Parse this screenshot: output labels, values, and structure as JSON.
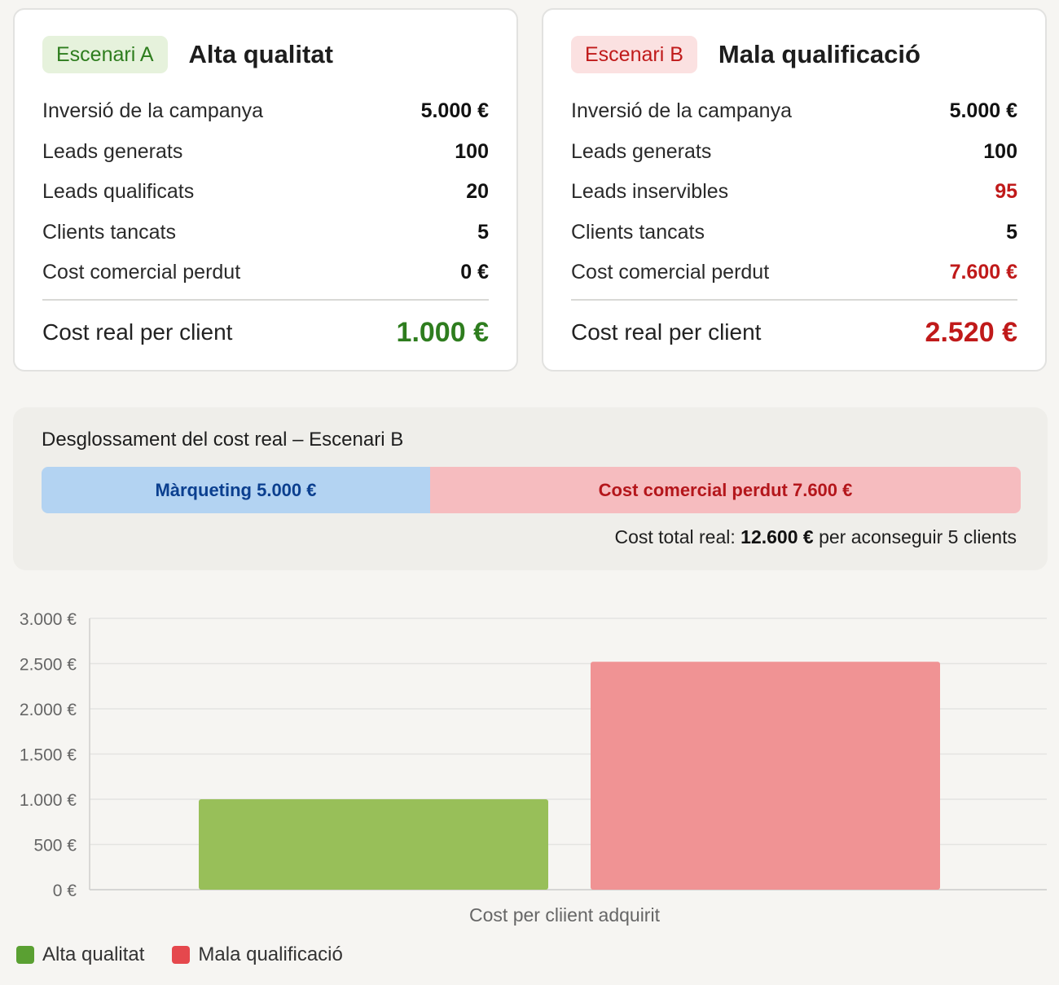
{
  "scenario_a": {
    "badge": "Escenari A",
    "title": "Alta qualitat",
    "rows": [
      {
        "label": "Inversió de la campanya",
        "value": "5.000 €"
      },
      {
        "label": "Leads generats",
        "value": "100"
      },
      {
        "label": "Leads qualificats",
        "value": "20"
      },
      {
        "label": "Clients tancats",
        "value": "5"
      },
      {
        "label": "Cost comercial perdut",
        "value": "0 €"
      }
    ],
    "total_label": "Cost real per client",
    "total_value": "1.000 €"
  },
  "scenario_b": {
    "badge": "Escenari B",
    "title": "Mala qualificació",
    "rows": [
      {
        "label": "Inversió de la campanya",
        "value": "5.000 €"
      },
      {
        "label": "Leads generats",
        "value": "100"
      },
      {
        "label": "Leads inservibles",
        "value": "95"
      },
      {
        "label": "Clients tancats",
        "value": "5"
      },
      {
        "label": "Cost comercial perdut",
        "value": "7.600 €"
      }
    ],
    "total_label": "Cost real per client",
    "total_value": "2.520 €"
  },
  "breakdown": {
    "title": "Desglossament del cost real – Escenari B",
    "marketing_label": "Màrqueting 5.000 €",
    "marketing_value": 5000,
    "lost_label": "Cost comercial perdut 7.600 €",
    "lost_value": 7600,
    "total_prefix": "Cost total real:",
    "total_amount": "12.600 €",
    "total_suffix": "per aconseguir 5 clients"
  },
  "colors": {
    "green": "#2e7d1e",
    "red": "#c01a1a",
    "badge_a_bg": "#e6f2dc",
    "badge_b_bg": "#fbe1e1",
    "marketing_bg": "#b3d3f2",
    "marketing_text": "#0b3f8f",
    "lost_bg": "#f6bcbf",
    "lost_text": "#b4161b",
    "bar_a": "#98bf59",
    "bar_b": "#f09394"
  },
  "chart_data": {
    "type": "bar",
    "categories": [
      "Cost per cliient adquirit"
    ],
    "series": [
      {
        "name": "Alta qualitat",
        "values": [
          1000
        ]
      },
      {
        "name": "Mala qualificació",
        "values": [
          2520
        ]
      }
    ],
    "xlabel": "Cost per cliient adquirit",
    "ylabel": "",
    "ylim": [
      0,
      3000
    ],
    "yticks": [
      0,
      500,
      1000,
      1500,
      2000,
      2500,
      3000
    ],
    "ytick_labels": [
      "0 €",
      "500 €",
      "1.000 €",
      "1.500 €",
      "2.000 €",
      "2.500 €",
      "3.000 €"
    ],
    "grid": true,
    "legend": "bottom-left"
  }
}
